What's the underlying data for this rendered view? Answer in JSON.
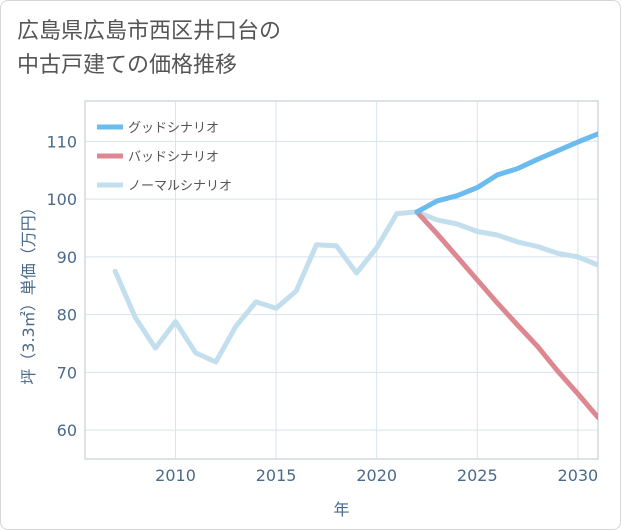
{
  "title": "広島県広島市西区井口台の\n中古戸建ての価格推移",
  "chart_data": {
    "type": "line",
    "xlabel": "年",
    "ylabel": "坪（3.3㎡）単価（万円）",
    "xlim": [
      2005.5,
      2031
    ],
    "ylim": [
      55,
      117
    ],
    "xticks": [
      2010,
      2015,
      2020,
      2025,
      2030
    ],
    "yticks": [
      60,
      70,
      80,
      90,
      100,
      110
    ],
    "grid": true,
    "legend_position": "top-left",
    "series": [
      {
        "name": "ノーマルシナリオ",
        "color": "#c3dfee",
        "x": [
          2007,
          2008,
          2009,
          2010,
          2011,
          2012,
          2013,
          2014,
          2015,
          2016,
          2017,
          2018,
          2019,
          2020,
          2021,
          2022,
          2023,
          2024,
          2025,
          2026,
          2027,
          2028,
          2029,
          2030,
          2031
        ],
        "values": [
          87.5,
          79.5,
          74.2,
          78.8,
          73.4,
          71.8,
          78.0,
          82.2,
          81.1,
          84.1,
          92.1,
          91.9,
          87.2,
          91.6,
          97.5,
          97.8,
          96.4,
          95.7,
          94.4,
          93.8,
          92.6,
          91.8,
          90.6,
          90.0,
          88.6
        ]
      },
      {
        "name": "バッドシナリオ",
        "color": "#dd8890",
        "x": [
          2022,
          2023,
          2024,
          2025,
          2026,
          2027,
          2028,
          2029,
          2030,
          2031
        ],
        "values": [
          97.8,
          94.0,
          90.0,
          86.0,
          82.0,
          78.2,
          74.5,
          70.2,
          66.3,
          62.2
        ]
      },
      {
        "name": "グッドシナリオ",
        "color": "#6bbbef",
        "x": [
          2022,
          2023,
          2024,
          2025,
          2026,
          2027,
          2028,
          2029,
          2030,
          2031
        ],
        "values": [
          97.8,
          99.7,
          100.6,
          102.0,
          104.2,
          105.3,
          106.9,
          108.4,
          109.9,
          111.3
        ]
      }
    ],
    "legend_order": [
      "グッドシナリオ",
      "バッドシナリオ",
      "ノーマルシナリオ"
    ]
  }
}
